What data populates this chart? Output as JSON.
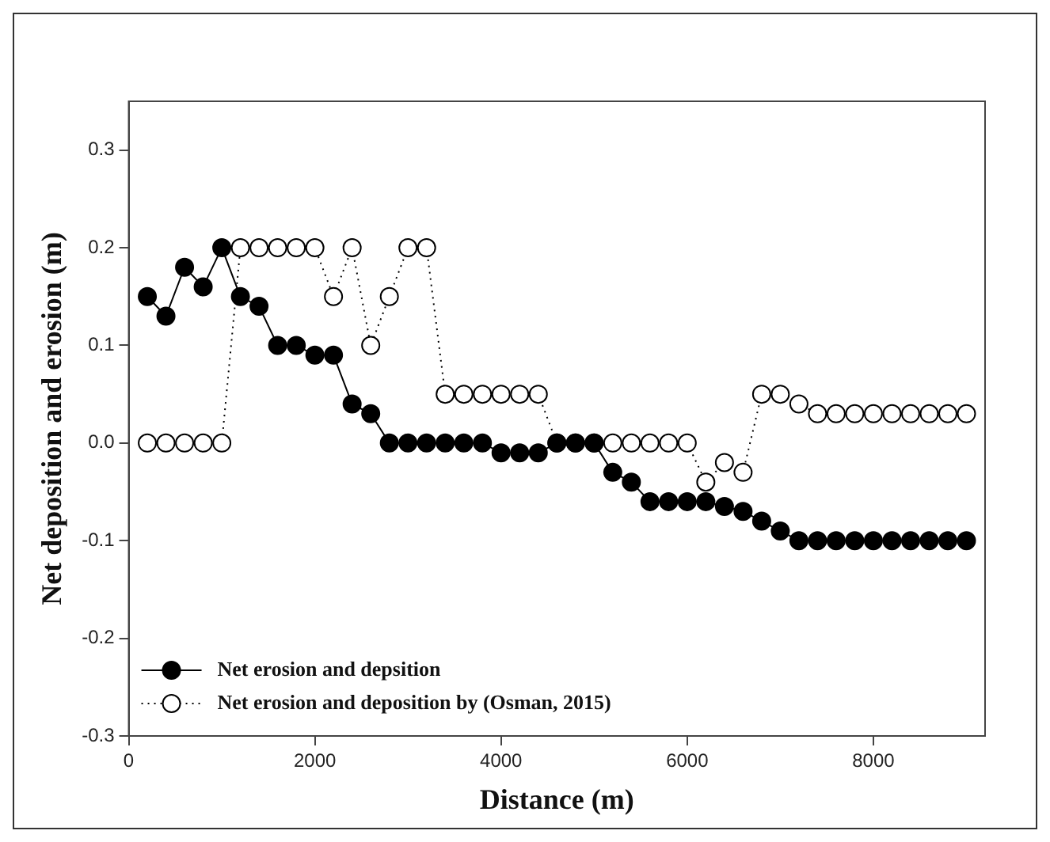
{
  "chart_data": {
    "type": "line",
    "xlabel": "Distance (m)",
    "ylabel": "Net deposition and erosion (m)",
    "x": [
      200,
      400,
      600,
      800,
      1000,
      1200,
      1400,
      1600,
      1800,
      2000,
      2200,
      2400,
      2600,
      2800,
      3000,
      3200,
      3400,
      3600,
      3800,
      4000,
      4200,
      4400,
      4600,
      4800,
      5000,
      5200,
      5400,
      5600,
      5800,
      6000,
      6200,
      6400,
      6600,
      6800,
      7000,
      7200,
      7400,
      7600,
      7800,
      8000,
      8200,
      8400,
      8600,
      8800,
      9000
    ],
    "series": [
      {
        "name": "Net erosion and depsition",
        "color": "#000000",
        "marker": "circle",
        "line_style": "solid",
        "values": [
          0.15,
          0.13,
          0.18,
          0.16,
          0.2,
          0.15,
          0.14,
          0.1,
          0.1,
          0.09,
          0.09,
          0.04,
          0.03,
          0,
          0,
          0,
          0,
          0,
          0,
          -0.01,
          -0.01,
          -0.01,
          0,
          0,
          0,
          -0.03,
          -0.04,
          -0.06,
          -0.06,
          -0.06,
          -0.06,
          -0.065,
          -0.07,
          -0.08,
          -0.09,
          -0.1,
          -0.1,
          -0.1,
          -0.1,
          -0.1,
          -0.1,
          -0.1,
          -0.1,
          -0.1,
          -0.1
        ]
      },
      {
        "name": "Net erosion and deposition by (Osman, 2015)",
        "color": "#ffffff",
        "marker": "circle",
        "line_style": "dotted",
        "values": [
          0,
          0,
          0,
          0,
          0,
          0.2,
          0.2,
          0.2,
          0.2,
          0.2,
          0.15,
          0.2,
          0.1,
          0.15,
          0.2,
          0.2,
          0.05,
          0.05,
          0.05,
          0.05,
          0.05,
          0.05,
          0,
          0,
          0,
          0,
          0,
          0,
          0,
          0,
          -0.04,
          -0.02,
          -0.03,
          0.05,
          0.05,
          0.04,
          0.03,
          0.03,
          0.03,
          0.03,
          0.03,
          0.03,
          0.03,
          0.03,
          0.03
        ]
      }
    ],
    "xlim": [
      0,
      9200
    ],
    "xticks": [
      0,
      2000,
      4000,
      6000,
      8000
    ],
    "ylim": [
      -0.3,
      0.35
    ],
    "yticks": [
      -0.3,
      -0.2,
      -0.1,
      {
        "value": 0,
        "label": "0.0"
      },
      0.1,
      0.2,
      0.3
    ],
    "legend": "bottom left",
    "grid": false
  }
}
